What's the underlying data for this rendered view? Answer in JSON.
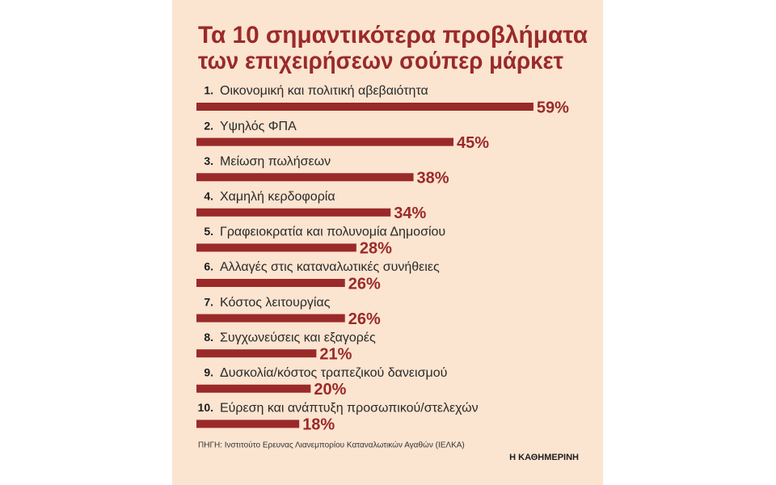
{
  "chart_data": {
    "type": "bar",
    "orientation": "horizontal",
    "title": [
      "Τα 10 σημαντικότερα προβλήματα",
      "των επιχειρήσεων σούπερ μάρκετ"
    ],
    "ranks": [
      "1.",
      "2.",
      "3.",
      "4.",
      "5.",
      "6.",
      "7.",
      "8.",
      "9.",
      "10."
    ],
    "categories": [
      "Οικονομική και πολιτική αβεβαιότητα",
      "Υψηλός ΦΠΑ",
      "Μείωση πωλήσεων",
      "Χαμηλή κερδοφορία",
      "Γραφειοκρατία και πολυνομία Δημοσίου",
      "Αλλαγές στις καταναλωτικές συνήθειες",
      "Κόστος λειτουργίας",
      "Συγχωνεύσεις και εξαγορές",
      "Δυσκολία/κόστος τραπεζικού δανεισμού",
      "Εύρεση και ανάπτυξη προσωπικού/στελεχών"
    ],
    "values": [
      59,
      45,
      38,
      34,
      28,
      26,
      26,
      21,
      20,
      18
    ],
    "value_labels": [
      "59%",
      "45%",
      "38%",
      "34%",
      "28%",
      "26%",
      "26%",
      "21%",
      "20%",
      "18%"
    ],
    "color": "#9a2a2a",
    "background": "#fbe4d0",
    "xlim": [
      0,
      60
    ],
    "source": "ΠΗΓΗ: Ινστιτούτο Ερευνας Λιανεμπορίου Καταναλωτικών Αγαθών (ΙΕΛΚΑ)",
    "publisher": "Η ΚΑΘΗΜΕΡΙΝΗ"
  }
}
